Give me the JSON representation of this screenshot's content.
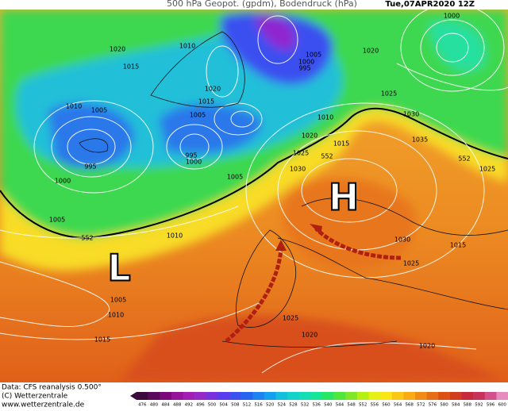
{
  "header": {
    "title": "500 hPa Geopot. (gpdm), Bodendruck (hPa)",
    "date": "Tue,07APR2020 12Z"
  },
  "pressure_centers": [
    {
      "label": "H"
    },
    {
      "label": "L"
    }
  ],
  "contour_labels": [
    "1000",
    "1020",
    "1010",
    "1015",
    "1005",
    "1000",
    "995",
    "1020",
    "1020",
    "1015",
    "1010",
    "1005",
    "1025",
    "1005",
    "1030",
    "1010",
    "1020",
    "1015",
    "1035",
    "995",
    "995",
    "1000",
    "1000",
    "1025",
    "552",
    "1030",
    "1005",
    "1025",
    "552",
    "1005",
    "552",
    "1010",
    "1030",
    "1015",
    "1025",
    "1005",
    "1010",
    "1025",
    "1015",
    "1020",
    "1020"
  ],
  "footer": {
    "source": "Data: CFS reanalysis 0.500°",
    "copyright": "(C) Wetterzentrale",
    "url": "www.wetterzentrale.de"
  },
  "colorbar": {
    "labels": [
      476,
      480,
      484,
      488,
      492,
      496,
      500,
      504,
      508,
      512,
      516,
      520,
      524,
      528,
      532,
      536,
      540,
      544,
      548,
      552,
      556,
      560,
      564,
      568,
      572,
      576,
      580,
      584,
      588,
      592,
      596,
      600
    ],
    "colors": [
      "#3c0a3c",
      "#5a0a5a",
      "#7a0a7a",
      "#96149a",
      "#a01eb4",
      "#9628c8",
      "#7832dc",
      "#5a3cf0",
      "#3c50f0",
      "#2864f0",
      "#1e82f0",
      "#14a0f0",
      "#14bedc",
      "#14d2c8",
      "#14dcb4",
      "#14e696",
      "#28e664",
      "#50e63c",
      "#82e628",
      "#b4f014",
      "#e6f014",
      "#fae614",
      "#fac814",
      "#faaa14",
      "#f08c14",
      "#e66e14",
      "#dc5014",
      "#d23c1e",
      "#c8283c",
      "#c8325a",
      "#d2508c",
      "#e68cbe"
    ]
  }
}
